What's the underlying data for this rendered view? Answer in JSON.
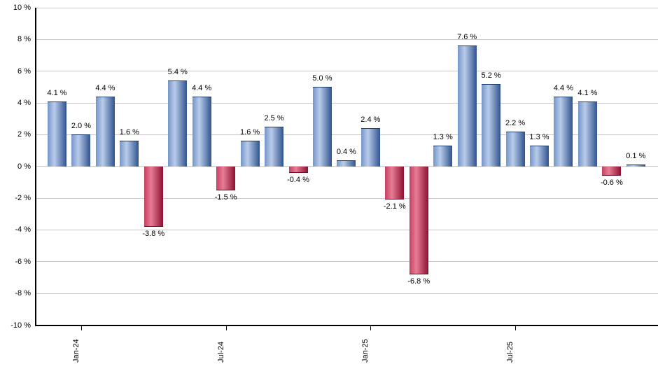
{
  "chart_data": {
    "type": "bar",
    "title": "",
    "xlabel": "",
    "ylabel": "",
    "ylim": [
      -10,
      10
    ],
    "y_tick_step": 2,
    "grid": true,
    "legend": "none",
    "y_ticks": [
      {
        "value": 10,
        "label": "10 %"
      },
      {
        "value": 8,
        "label": "8 %"
      },
      {
        "value": 6,
        "label": "6 %"
      },
      {
        "value": 4,
        "label": "4 %"
      },
      {
        "value": 2,
        "label": "2 %"
      },
      {
        "value": 0,
        "label": "0 %"
      },
      {
        "value": -2,
        "label": "-2 %"
      },
      {
        "value": -4,
        "label": "-4 %"
      },
      {
        "value": -6,
        "label": "-6 %"
      },
      {
        "value": -8,
        "label": "-8 %"
      },
      {
        "value": -10,
        "label": "-10 %"
      }
    ],
    "x_ticks": [
      {
        "label": "Jan-24",
        "bar_index": 1
      },
      {
        "label": "Jul-24",
        "bar_index": 7
      },
      {
        "label": "Jan-25",
        "bar_index": 13
      },
      {
        "label": "Jul-25",
        "bar_index": 19
      }
    ],
    "values": [
      4.1,
      2.0,
      4.4,
      1.6,
      -3.8,
      5.4,
      4.4,
      -1.5,
      1.6,
      2.5,
      -0.4,
      5.0,
      0.4,
      2.4,
      -2.1,
      -6.8,
      1.3,
      7.6,
      5.2,
      2.2,
      1.3,
      4.4,
      4.1,
      -0.6,
      0.1
    ],
    "bar_labels": [
      "4.1 %",
      "2.0 %",
      "4.4 %",
      "1.6 %",
      "-3.8 %",
      "5.4 %",
      "4.4 %",
      "-1.5 %",
      "1.6 %",
      "2.5 %",
      "-0.4 %",
      "5.0 %",
      "0.4 %",
      "2.4 %",
      "-2.1 %",
      "-6.8 %",
      "1.3 %",
      "7.6 %",
      "5.2 %",
      "2.2 %",
      "1.3 %",
      "4.4 %",
      "4.1 %",
      "-0.6 %",
      "0.1 %"
    ],
    "colors": {
      "bar_positive_gradient": [
        "#7495ca",
        "#b9cce9",
        "#30538f"
      ],
      "bar_positive_border": "#1d3c6e",
      "bar_negative_gradient": [
        "#c54063",
        "#e77d95",
        "#8e1031"
      ],
      "bar_negative_border": "#6e0c26",
      "grid": "#c9c9c9",
      "axis": "#000000",
      "text": "#000000",
      "background": "#ffffff"
    }
  }
}
